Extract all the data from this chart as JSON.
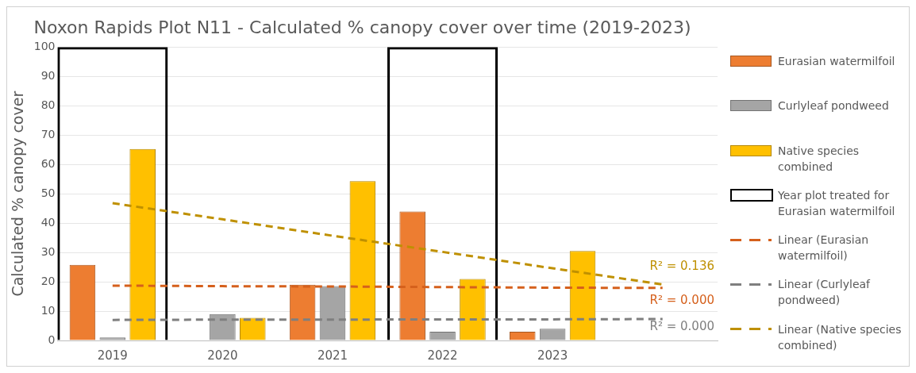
{
  "chart_data": {
    "type": "bar",
    "title": "Noxon Rapids Plot N11 - Calculated % canopy cover over time (2019-2023)",
    "ylabel": "Calculated % canopy cover",
    "categories": [
      "2019",
      "2020",
      "2021",
      "2022",
      "2023",
      null
    ],
    "ylim": [
      0,
      100
    ],
    "yticks": [
      0,
      10,
      20,
      30,
      40,
      50,
      60,
      70,
      80,
      90,
      100
    ],
    "grid": "y",
    "legend": "right",
    "series": [
      {
        "name": "Eurasian watermilfoil",
        "color": "#ed7d31",
        "values": [
          25.8,
          0,
          19,
          44,
          3,
          null
        ]
      },
      {
        "name": "Curlyleaf pondweed",
        "color": "#a5a5a5",
        "values": [
          1,
          9,
          18.5,
          3,
          4,
          null
        ]
      },
      {
        "name": "Native species combined",
        "color": "#ffc000",
        "values": [
          65.3,
          7.7,
          54.3,
          21,
          30.5,
          null
        ]
      },
      {
        "name": "Year plot treated for Eurasian watermilfoil",
        "color": "#000000",
        "values": [
          100,
          null,
          null,
          100,
          null,
          null
        ]
      },
      {
        "name": "Linear (Eurasian watermilfoil)",
        "type": "line",
        "line_style": "dashed",
        "marker": "none",
        "color": "#d5601c",
        "values": [
          18.7,
          18.5,
          18.4,
          18.2,
          18.0,
          17.9
        ]
      },
      {
        "name": "Linear (Curlyleaf pondweed)",
        "type": "line",
        "line_style": "dashed",
        "marker": "none",
        "color": "#7f7f7f",
        "values": [
          7,
          7.1,
          7.1,
          7.2,
          7.2,
          7.3
        ]
      },
      {
        "name": "Linear (Native species combined)",
        "type": "line",
        "line_style": "dashed",
        "marker": "none",
        "color": "#bf9000",
        "values": [
          46.8,
          41.3,
          35.7,
          30.2,
          24.6,
          19.1
        ]
      }
    ],
    "annotations": [
      "R² = 0.000",
      "R² = 0.000",
      "R² = 0.136"
    ]
  }
}
